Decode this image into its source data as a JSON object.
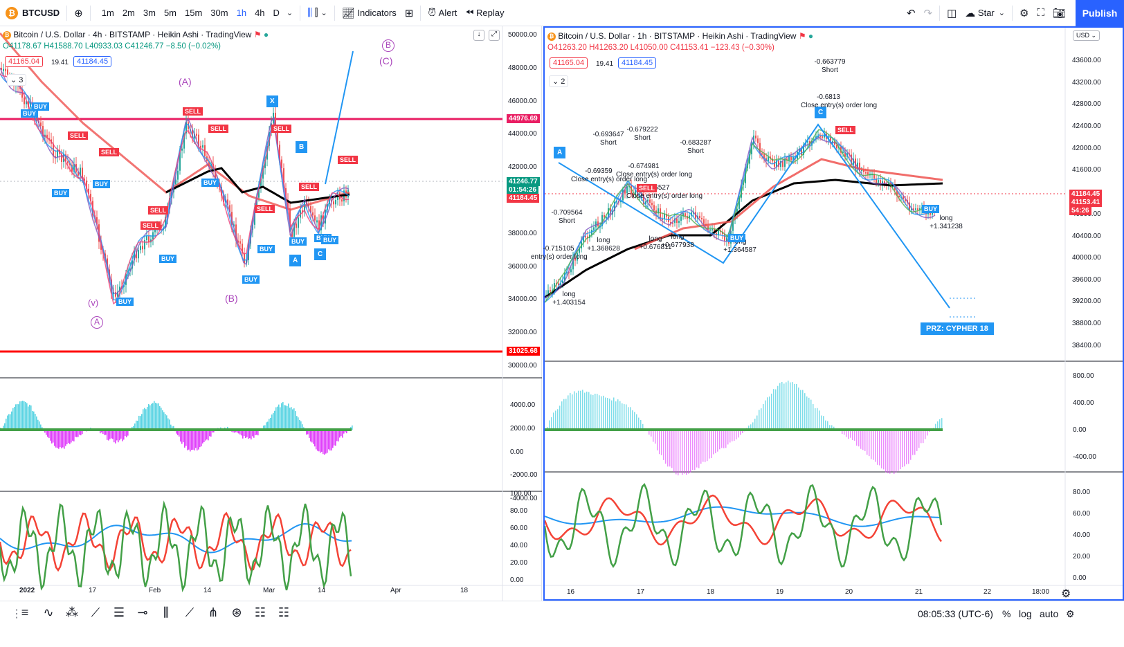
{
  "toolbar": {
    "symbol": "BTCUSD",
    "intervals": [
      "1m",
      "2m",
      "3m",
      "5m",
      "15m",
      "30m",
      "1h",
      "4h",
      "D"
    ],
    "active_interval": "1h",
    "indicators": "Indicators",
    "alert": "Alert",
    "replay": "Replay",
    "layout_name": "Star",
    "publish": "Publish"
  },
  "left_chart": {
    "title": "Bitcoin / U.S. Dollar · 4h · BITSTAMP · Heikin Ashi · TradingView",
    "ohlc": "O41178.67 H41588.70 L40933.03 C41246.77 −8.50 (−0.02%)",
    "bid": "41165.04",
    "spread": "19.41",
    "ask": "41184.45",
    "collapse_count": "3",
    "price_axis": [
      "50000.00",
      "48000.00",
      "46000.00",
      "44000.00",
      "42000.00",
      "40000.00",
      "38000.00",
      "36000.00",
      "34000.00",
      "32000.00",
      "30000.00"
    ],
    "price_tags": {
      "red_line": "44976.69",
      "last": "41246.77",
      "timer": "01:54:26",
      "ask": "41184.45",
      "bottom_line": "31025.68"
    },
    "osc_axis": [
      "4000.00",
      "2000.00",
      "0.00",
      "-2000.00",
      "-4000.00"
    ],
    "rsi_axis": [
      "100.00",
      "80.00",
      "60.00",
      "40.00",
      "20.00",
      "0.00"
    ],
    "time_axis": [
      "2022",
      "17",
      "Feb",
      "14",
      "Mar",
      "14",
      "Apr",
      "18"
    ],
    "wave_labels": {
      "A": "(A)",
      "B": "(B)",
      "C": "(C)",
      "v": "(v)",
      "Acircle": "A",
      "Bcircle": "B"
    },
    "pattern_points": [
      "X",
      "A",
      "B",
      "C"
    ],
    "signal_labels": {
      "buy": "BUY",
      "sell": "SELL"
    }
  },
  "right_chart": {
    "title": "Bitcoin / U.S. Dollar · 1h · BITSTAMP · Heikin Ashi · TradingView",
    "ohlc": "O41263.20 H41263.20 L41050.00 C41153.41 −123.43 (−0.30%)",
    "bid": "41165.04",
    "spread": "19.41",
    "ask": "41184.45",
    "collapse_count": "2",
    "currency": "USD",
    "price_axis": [
      "43600.00",
      "43200.00",
      "42800.00",
      "42400.00",
      "42000.00",
      "41600.00",
      "40800.00",
      "40400.00",
      "40000.00",
      "39600.00",
      "39200.00",
      "38800.00",
      "38400.00"
    ],
    "price_tags": {
      "ask": "41184.45",
      "last": "41153.41",
      "timer": "54:26"
    },
    "osc_axis": [
      "800.00",
      "400.00",
      "0.00",
      "-400.00"
    ],
    "rsi_axis": [
      "80.00",
      "60.00",
      "40.00",
      "20.00",
      "0.00"
    ],
    "time_axis": [
      "16",
      "17",
      "18",
      "19",
      "20",
      "21",
      "22",
      "18:00"
    ],
    "prz": "PRZ: CYPHER 18",
    "signals": [
      {
        "text": "-0.663779\nShort"
      },
      {
        "text": "-0.6813\nClose entry(s) order long"
      },
      {
        "text": "-0.693647\nShort"
      },
      {
        "text": "-0.679222\nShort"
      },
      {
        "text": "-0.683287\nShort"
      },
      {
        "text": "-0.69359\nClose entry(s) order long"
      },
      {
        "text": "-0.674981\nClose entry(s) order long"
      },
      {
        "text": "-0.675527\nClose entry(s) order long"
      },
      {
        "text": "-0.709564\nShort"
      },
      {
        "text": "-0.715105\nentry(s) order long"
      },
      {
        "text": "long\n+1.368628"
      },
      {
        "text": "long\n+0.676811"
      },
      {
        "text": "long\n+0.677938"
      },
      {
        "text": "long\n+1.364587"
      },
      {
        "text": "long\n+1.403154"
      },
      {
        "text": "long\n+1.341238"
      }
    ],
    "pattern_points": [
      "A",
      "C"
    ]
  },
  "bottom": {
    "clock": "08:05:33 (UTC-6)",
    "percent": "%",
    "log": "log",
    "auto": "auto"
  },
  "colors": {
    "accent": "#2962ff",
    "sell": "#f23645",
    "buy": "#2196f3",
    "wave": "#ab47bc"
  }
}
